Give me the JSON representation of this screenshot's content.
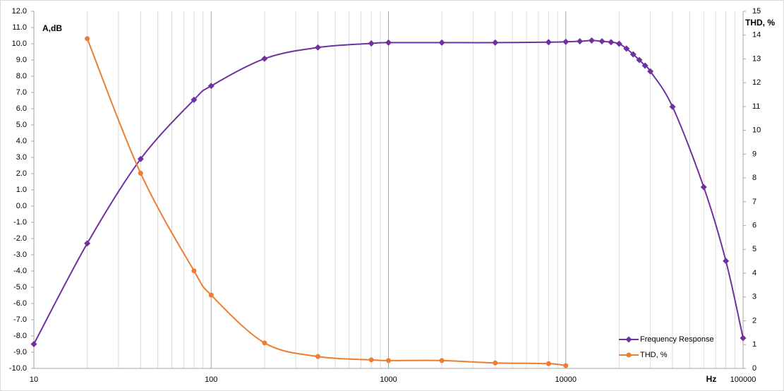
{
  "chart_data": {
    "type": "line",
    "y_axis_title": "A,dB",
    "y2_axis_title": "THD, %",
    "x_axis_title": "Hz",
    "x_scale": "log",
    "grid": "vertical-log",
    "legend": "bottom-right",
    "xlim": [
      10,
      100000
    ],
    "xticks": [
      10,
      100,
      1000,
      10000,
      100000
    ],
    "ylim": [
      -10,
      12
    ],
    "yticks": [
      {
        "value": 12,
        "label": "12.0"
      },
      {
        "value": 11,
        "label": "11.0"
      },
      {
        "value": 10,
        "label": "10.0"
      },
      {
        "value": 9,
        "label": "9.0"
      },
      {
        "value": 8,
        "label": "8.0"
      },
      {
        "value": 7,
        "label": "7.0"
      },
      {
        "value": 6,
        "label": "6.0"
      },
      {
        "value": 5,
        "label": "5.0"
      },
      {
        "value": 4,
        "label": "4.0"
      },
      {
        "value": 3,
        "label": "3.0"
      },
      {
        "value": 2,
        "label": "2.0"
      },
      {
        "value": 1,
        "label": "1.0"
      },
      {
        "value": 0,
        "label": "0.0"
      },
      {
        "value": -1,
        "label": "-1.0"
      },
      {
        "value": -2,
        "label": "-2.0"
      },
      {
        "value": -3,
        "label": "-3.0"
      },
      {
        "value": -4,
        "label": "-4.0"
      },
      {
        "value": -5,
        "label": "-5.0"
      },
      {
        "value": -6,
        "label": "-6.0"
      },
      {
        "value": -7,
        "label": "-7.0"
      },
      {
        "value": -8,
        "label": "-8.0"
      },
      {
        "value": -9,
        "label": "-9.0"
      },
      {
        "value": -10,
        "label": "-10.0"
      }
    ],
    "y2lim": [
      0,
      15
    ],
    "y2ticks": [
      15,
      14,
      13,
      12,
      11,
      10,
      9,
      8,
      7,
      6,
      5,
      4,
      3,
      2,
      1,
      0
    ],
    "series": [
      {
        "name": "Frequency Response",
        "color": "#7030a0",
        "marker": "diamond",
        "x": [
          10,
          20,
          40,
          80,
          100,
          200,
          400,
          800,
          1000,
          2000,
          4000,
          8000,
          10000,
          12000,
          14000,
          16000,
          18000,
          20000,
          22000,
          24000,
          26000,
          28000,
          30000,
          40000,
          60000,
          80000,
          100000
        ],
        "values": [
          -8.5,
          -2.3,
          2.9,
          6.55,
          7.4,
          9.08,
          9.77,
          10.02,
          10.07,
          10.07,
          10.07,
          10.1,
          10.12,
          10.15,
          10.2,
          10.15,
          10.1,
          10.0,
          9.7,
          9.35,
          9.0,
          8.65,
          8.3,
          6.12,
          1.17,
          -3.38,
          -8.13
        ]
      },
      {
        "name": "THD, %",
        "color": "#ed7d31",
        "marker": "circle",
        "axis": "y2",
        "x": [
          20,
          40,
          80,
          100,
          200,
          400,
          800,
          1000,
          2000,
          4000,
          8000,
          10000
        ],
        "values": [
          13.85,
          8.2,
          4.1,
          3.08,
          1.07,
          0.5,
          0.36,
          0.33,
          0.33,
          0.23,
          0.2,
          0.12
        ]
      }
    ]
  }
}
